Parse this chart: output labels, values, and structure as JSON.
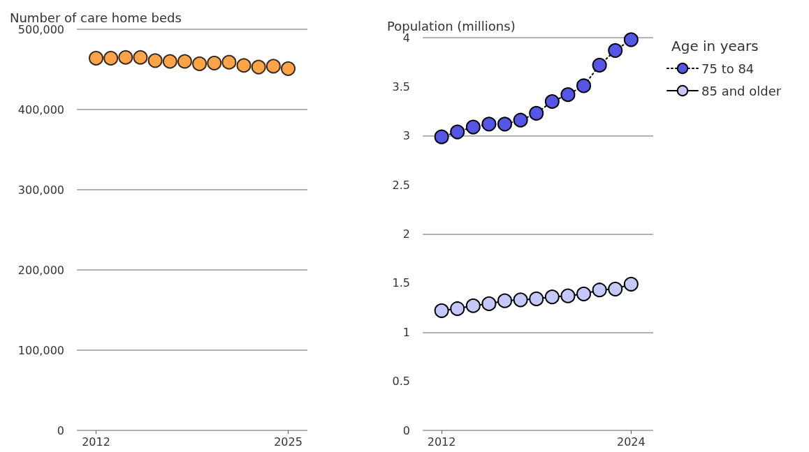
{
  "chart_data": [
    {
      "type": "scatter",
      "ylabel": "Number of care home beds",
      "x": [
        2012,
        2013,
        2014,
        2015,
        2016,
        2017,
        2018,
        2019,
        2020,
        2021,
        2022,
        2023,
        2024,
        2025
      ],
      "xlim": [
        2010.7,
        2026.3
      ],
      "xticks": [
        2012,
        2025
      ],
      "ylim": [
        0,
        500000
      ],
      "yticks": [
        0,
        {
          "value": 100000,
          "label": "100,000"
        },
        {
          "value": 200000,
          "label": "200,000"
        },
        {
          "value": 300000,
          "label": "300,000"
        },
        {
          "value": 400000,
          "label": "400,000"
        },
        {
          "value": 500000,
          "label": "500,000"
        }
      ],
      "grid": "y",
      "legend": false,
      "marker": "circle",
      "series": [
        {
          "color": "#ff8c1a",
          "values": [
            464000,
            464000,
            465000,
            465000,
            461000,
            460000,
            460000,
            457000,
            458000,
            459000,
            455000,
            453000,
            454000,
            451000
          ]
        }
      ]
    },
    {
      "type": "line",
      "ylabel": "Population (millions)",
      "legend_title": "Age in years",
      "x": [
        2012,
        2013,
        2014,
        2015,
        2016,
        2017,
        2018,
        2019,
        2020,
        2021,
        2022,
        2023,
        2024
      ],
      "xlim": [
        2010.8,
        2025.4
      ],
      "xticks": [
        2012,
        2024
      ],
      "ylim": [
        0,
        4
      ],
      "yticks": [
        0,
        0.5,
        1,
        1.5,
        2,
        2.5,
        3,
        3.5,
        4
      ],
      "grid": "y",
      "legend": "right",
      "marker": "circle",
      "series": [
        {
          "name": "75 to 84",
          "color": "#5555e6",
          "line_style": "dotted",
          "values": [
            2.99,
            3.04,
            3.09,
            3.12,
            3.12,
            3.16,
            3.23,
            3.35,
            3.42,
            3.51,
            3.72,
            3.87,
            3.98
          ]
        },
        {
          "name": "85 and older",
          "color": "#c4c8fa",
          "line_style": "solid",
          "values": [
            1.22,
            1.24,
            1.27,
            1.29,
            1.32,
            1.33,
            1.34,
            1.36,
            1.37,
            1.39,
            1.43,
            1.44,
            1.49
          ]
        }
      ]
    }
  ]
}
